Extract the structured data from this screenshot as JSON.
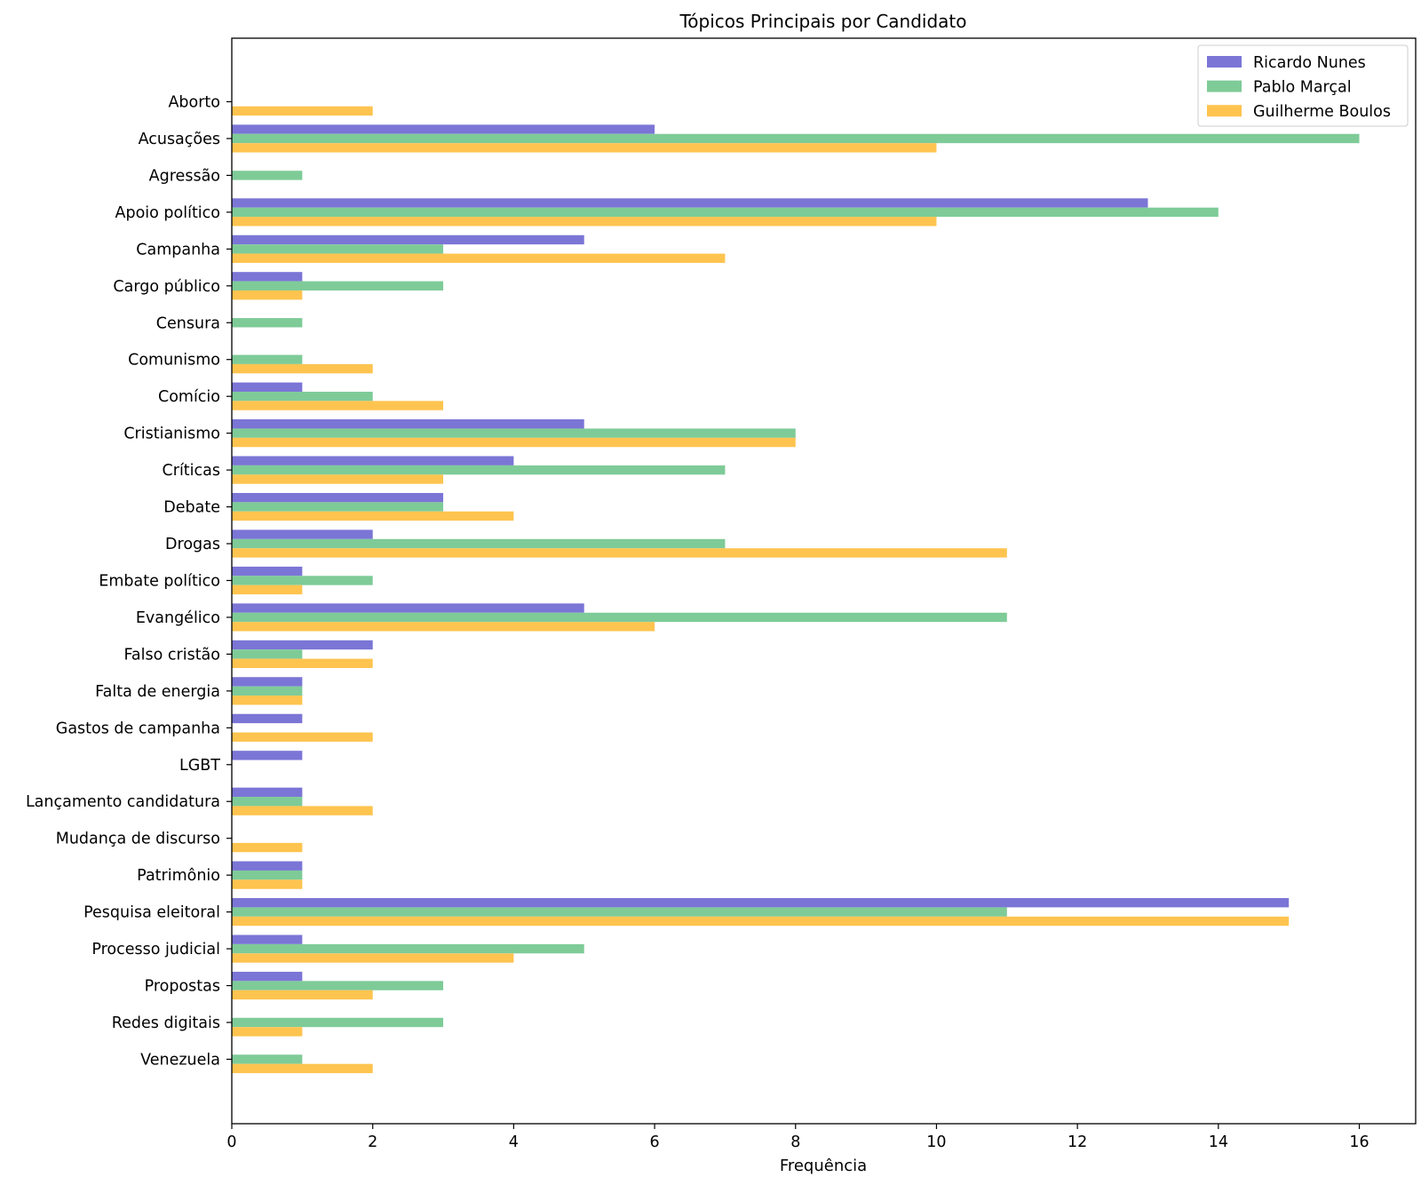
{
  "chart_data": {
    "type": "bar",
    "orientation": "horizontal",
    "title": "Tópicos Principais por Candidato",
    "xlabel": "Frequência",
    "ylabel": "",
    "xlim": [
      0,
      16.8
    ],
    "xticks": [
      0,
      2,
      4,
      6,
      8,
      10,
      12,
      14,
      16
    ],
    "grid": false,
    "legend_position": "top-right",
    "categories": [
      "Aborto",
      "Acusações",
      "Agressão",
      "Apoio político",
      "Campanha",
      "Cargo público",
      "Censura",
      "Comunismo",
      "Comício",
      "Cristianismo",
      "Críticas",
      "Debate",
      "Drogas",
      "Embate político",
      "Evangélico",
      "Falso cristão",
      "Falta de energia",
      "Gastos de campanha",
      "LGBT",
      "Lançamento candidatura",
      "Mudança de discurso",
      "Patrimônio",
      "Pesquisa eleitoral",
      "Processo judicial",
      "Propostas",
      "Redes digitais",
      "Venezuela"
    ],
    "series": [
      {
        "name": "Ricardo Nunes",
        "color": "#7b75d6",
        "values": [
          0,
          6,
          0,
          13,
          5,
          1,
          0,
          0,
          1,
          5,
          4,
          3,
          2,
          1,
          5,
          2,
          1,
          1,
          1,
          1,
          0,
          1,
          15,
          1,
          1,
          0,
          0
        ]
      },
      {
        "name": "Pablo Marçal",
        "color": "#7ecb98",
        "values": [
          0,
          16,
          1,
          14,
          3,
          3,
          1,
          1,
          2,
          8,
          7,
          3,
          7,
          2,
          11,
          1,
          1,
          0,
          0,
          1,
          0,
          1,
          11,
          5,
          3,
          3,
          1
        ]
      },
      {
        "name": "Guilherme Boulos",
        "color": "#fec44f",
        "values": [
          2,
          10,
          0,
          10,
          7,
          1,
          0,
          2,
          3,
          8,
          3,
          4,
          11,
          1,
          6,
          2,
          1,
          2,
          0,
          2,
          1,
          1,
          15,
          4,
          2,
          1,
          2
        ]
      }
    ]
  }
}
